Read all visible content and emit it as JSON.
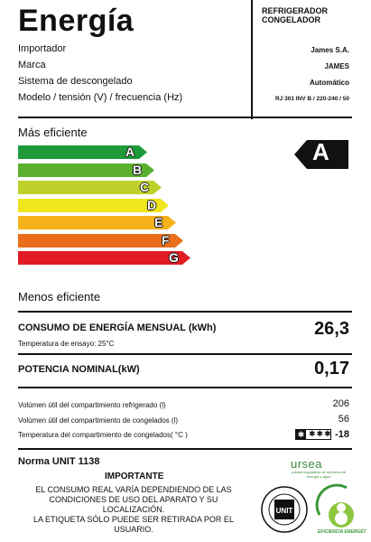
{
  "header": {
    "title": "Energía",
    "product_type": [
      "REFRIGERADOR",
      "CONGELADOR"
    ]
  },
  "info_rows": [
    {
      "label": "Importador",
      "value": "James S.A."
    },
    {
      "label": "Marca",
      "value": "JAMES"
    },
    {
      "label": "Sistema de descongelado",
      "value": "Automático"
    },
    {
      "label": "Modelo / tensión (V) / frecuencia (Hz)",
      "value": "RJ 301 INV B / 220-240 / 50"
    }
  ],
  "efficiency": {
    "top_label": "Más eficiente",
    "bottom_label": "Menos eficiente",
    "classes": [
      {
        "letter": "A",
        "color": "#1e9a3a"
      },
      {
        "letter": "B",
        "color": "#5bb030"
      },
      {
        "letter": "C",
        "color": "#bdd12a"
      },
      {
        "letter": "D",
        "color": "#f1e51c"
      },
      {
        "letter": "E",
        "color": "#f6b21a"
      },
      {
        "letter": "F",
        "color": "#ea6e1c"
      },
      {
        "letter": "G",
        "color": "#e01b24"
      }
    ],
    "rating": "A"
  },
  "consumption": {
    "label": "CONSUMO DE ENERGÍA MENSUAL (kWh)",
    "value": "26,3",
    "test_temp": "Temperatura de ensayo: 25°C"
  },
  "power": {
    "label": "POTENCIA NOMINAL(kW)",
    "value": "0,17"
  },
  "volumes": [
    {
      "label": "Volúmen útil del compartimiento refrigerado (l)",
      "value": "206"
    },
    {
      "label": "Volúmen útil del compartimiento de congelados (l)",
      "value": "56"
    }
  ],
  "freezer_temp": {
    "label": "Temperatura del compartimiento de congelados( °C )",
    "stars": "✱✱✱",
    "value": "-18"
  },
  "footer": {
    "norma": "Norma UNIT 1138",
    "importante": "IMPORTANTE",
    "note1": "EL CONSUMO REAL VARÍA DEPENDIENDO DE LAS CONDICIONES DE USO DEL APARATO Y SU LOCALIZACIÓN.",
    "note2": "LA ETIQUETA SÓLO PUEDE SER RETIRADA POR EL USUARIO.",
    "ursea_name": "ursea",
    "ursea_sub": "unidad reguladora de servicios de energía y agua",
    "eff_logo_text": "EFICIENCIA ENERGÉTICA",
    "unit_logo_text": "UNIT"
  }
}
